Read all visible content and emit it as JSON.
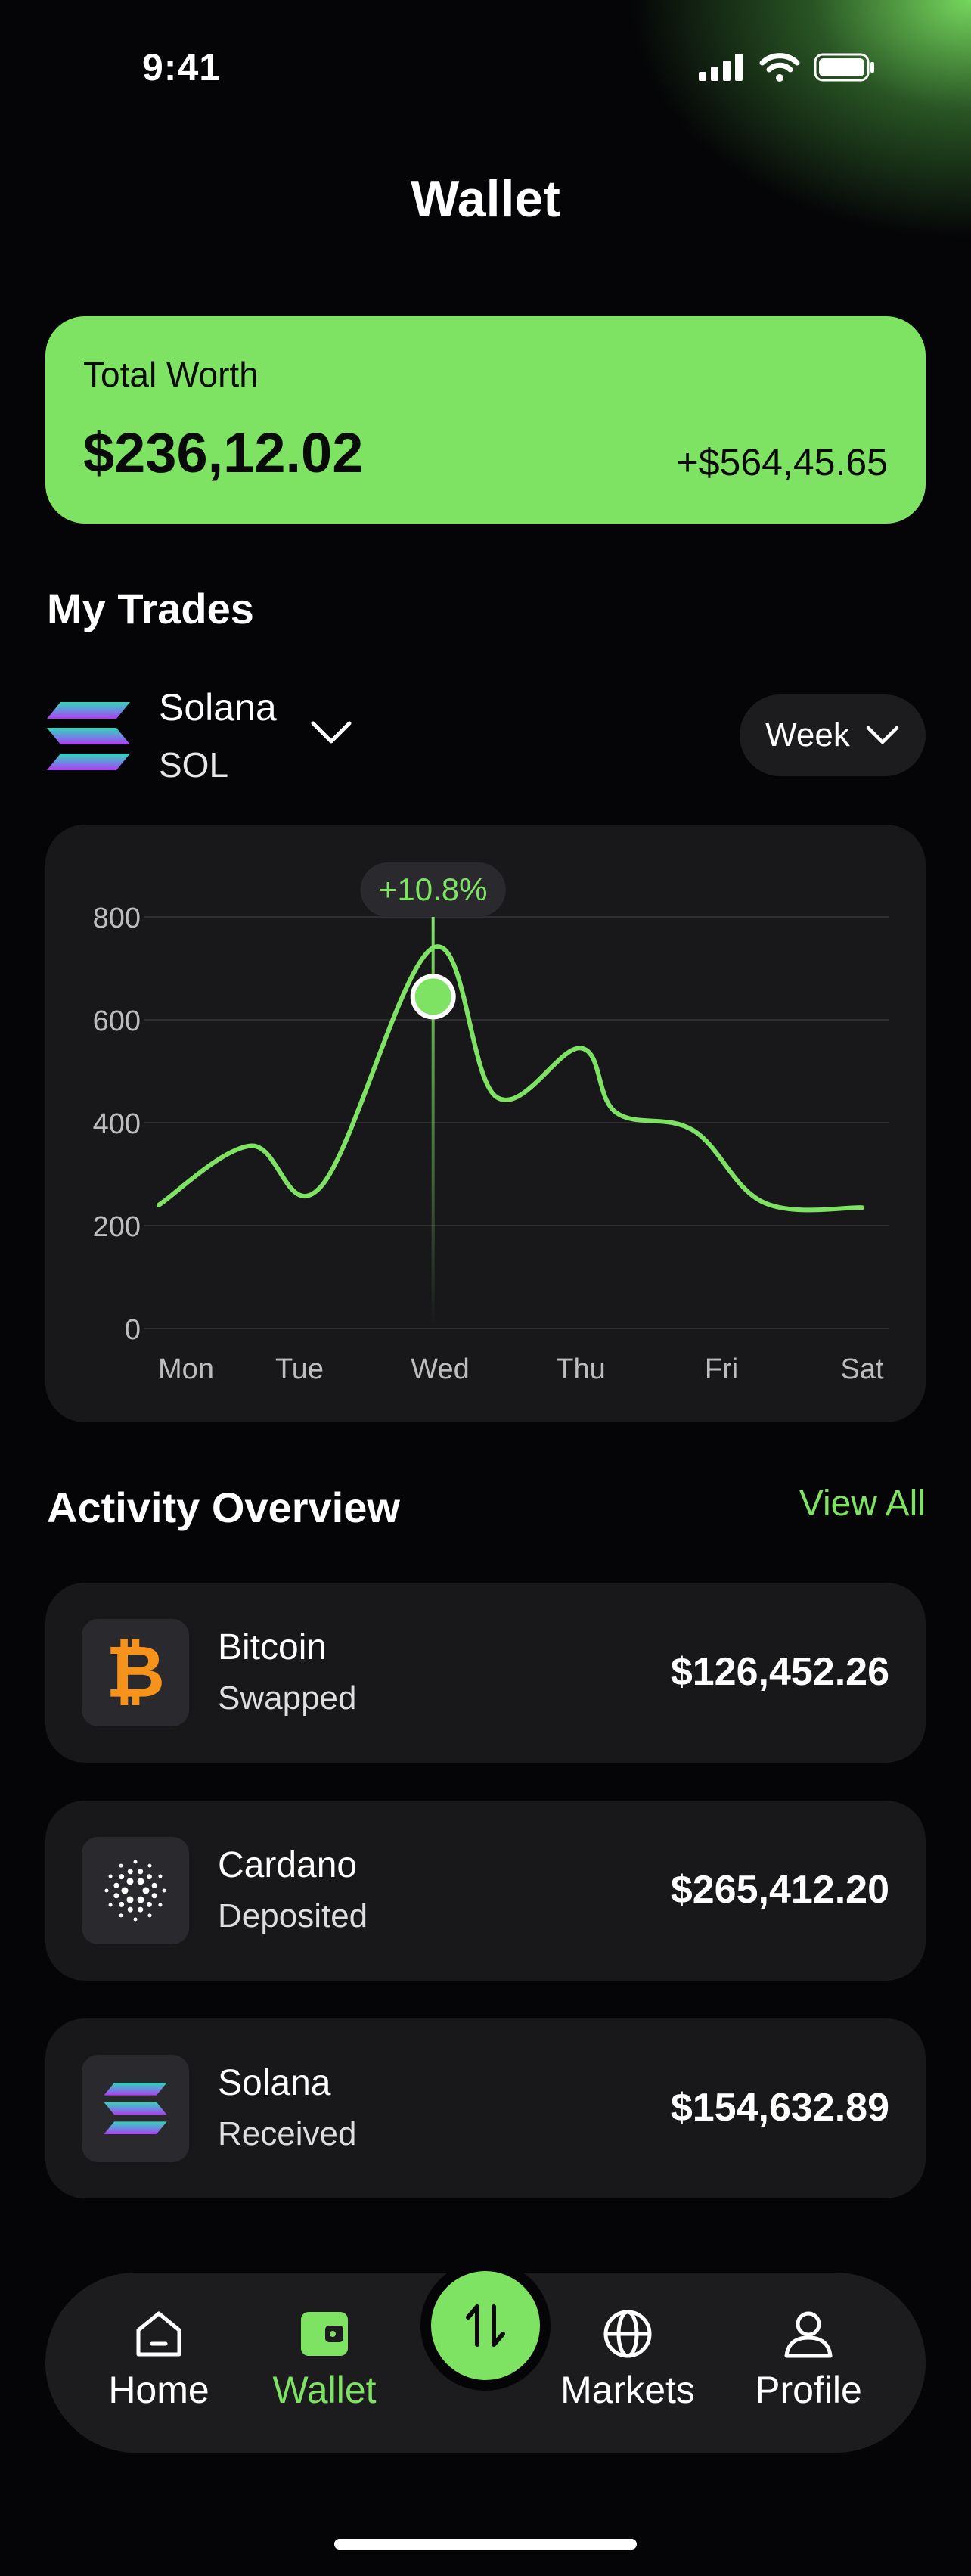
{
  "status_bar": {
    "time": "9:41"
  },
  "header": {
    "title": "Wallet"
  },
  "total_worth": {
    "label": "Total Worth",
    "value": "$236,12.02",
    "change": "+$564,45.65"
  },
  "trades": {
    "title": "My Trades",
    "coin": {
      "name": "Solana",
      "ticker": "SOL"
    },
    "period": "Week"
  },
  "chart_data": {
    "type": "line",
    "categories": [
      "Mon",
      "Tue",
      "Wed",
      "Thu",
      "Fri",
      "Sat"
    ],
    "y_ticks": [
      0,
      200,
      400,
      600,
      800
    ],
    "ylim": [
      0,
      800
    ],
    "series": [
      {
        "values": [
          240,
          355,
          275,
          740,
          450,
          545,
          420,
          385,
          245,
          235
        ],
        "x": [
          0,
          0.65,
          1.15,
          1.95,
          2.4,
          3.0,
          3.25,
          3.8,
          4.3,
          5.0
        ]
      }
    ],
    "highlight": {
      "x": 1.95,
      "y": 645,
      "label": "+10.8%"
    },
    "grid": true,
    "accent_color": "#7ee363"
  },
  "activity": {
    "title": "Activity Overview",
    "view_all": "View All",
    "items": [
      {
        "name": "Bitcoin",
        "status": "Swapped",
        "amount": "$126,452.26",
        "icon": "bitcoin-icon"
      },
      {
        "name": "Cardano",
        "status": "Deposited",
        "amount": "$265,412.20",
        "icon": "cardano-icon"
      },
      {
        "name": "Solana",
        "status": "Received",
        "amount": "$154,632.89",
        "icon": "solana-icon"
      }
    ]
  },
  "nav": {
    "items": [
      {
        "label": "Home",
        "icon": "home-icon"
      },
      {
        "label": "Wallet",
        "icon": "wallet-icon",
        "active": true
      },
      {
        "label": "Markets",
        "icon": "globe-icon"
      },
      {
        "label": "Profile",
        "icon": "profile-icon"
      }
    ],
    "center_icon": "swap-arrows-icon"
  },
  "colors": {
    "accent": "#7ee363",
    "background": "#050507",
    "card": "#18181b"
  }
}
